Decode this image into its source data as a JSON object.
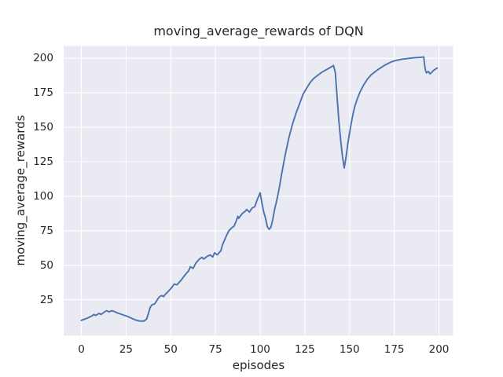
{
  "figure": {
    "background_color": "#ffffff"
  },
  "chart_data": {
    "type": "line",
    "title": "moving_average_rewards of DQN",
    "xlabel": "episodes",
    "ylabel": "moving_average_rewards",
    "x_ticks": [
      0,
      25,
      50,
      75,
      100,
      125,
      150,
      175,
      200
    ],
    "y_ticks": [
      25,
      50,
      75,
      100,
      125,
      150,
      175,
      200
    ],
    "xlim": [
      -9.9,
      207.9
    ],
    "ylim": [
      -1,
      209
    ],
    "grid": true,
    "legend_position": "none",
    "plot_bg_color": "#EAEAF2",
    "grid_color": "#FFFFFF",
    "text_color": "#262626",
    "series": [
      {
        "name": "DQN moving average reward",
        "color": "#4C72B0",
        "points": [
          [
            0,
            10
          ],
          [
            2,
            11
          ],
          [
            4,
            12
          ],
          [
            6,
            13.3
          ],
          [
            7,
            14.3
          ],
          [
            8,
            13.6
          ],
          [
            10,
            15.1
          ],
          [
            11,
            14.3
          ],
          [
            12.5,
            15.7
          ],
          [
            14,
            17
          ],
          [
            15.5,
            16.2
          ],
          [
            17,
            17
          ],
          [
            18,
            16.6
          ],
          [
            20,
            15.5
          ],
          [
            23,
            14.2
          ],
          [
            26,
            12.8
          ],
          [
            29,
            11
          ],
          [
            31,
            10
          ],
          [
            33,
            9.5
          ],
          [
            35,
            9.5
          ],
          [
            36.5,
            11
          ],
          [
            37.5,
            15
          ],
          [
            38.5,
            19.5
          ],
          [
            39.5,
            21.3
          ],
          [
            41,
            22
          ],
          [
            42,
            24
          ],
          [
            43,
            26
          ],
          [
            44,
            27.5
          ],
          [
            45,
            28
          ],
          [
            46,
            27.3
          ],
          [
            47,
            29
          ],
          [
            48,
            30.2
          ],
          [
            50,
            33
          ],
          [
            52,
            36.4
          ],
          [
            53.5,
            35.8
          ],
          [
            55,
            38
          ],
          [
            56,
            39.5
          ],
          [
            58,
            43
          ],
          [
            60,
            46
          ],
          [
            61,
            48.9
          ],
          [
            62.5,
            47.7
          ],
          [
            64,
            51.5
          ],
          [
            66,
            54.5
          ],
          [
            67.5,
            55.7
          ],
          [
            68.5,
            54.5
          ],
          [
            70,
            56.2
          ],
          [
            72,
            57.5
          ],
          [
            73.5,
            56
          ],
          [
            74.5,
            59
          ],
          [
            76,
            57.5
          ],
          [
            78,
            60.5
          ],
          [
            79,
            65
          ],
          [
            80,
            68
          ],
          [
            81,
            71
          ],
          [
            82.5,
            75
          ],
          [
            84,
            77
          ],
          [
            85.5,
            78.5
          ],
          [
            86.5,
            81.8
          ],
          [
            87.5,
            85.5
          ],
          [
            88,
            84
          ],
          [
            90,
            87.5
          ],
          [
            91.5,
            89
          ],
          [
            92.5,
            90.5
          ],
          [
            94,
            88.5
          ],
          [
            95.5,
            91.5
          ],
          [
            97,
            92.5
          ],
          [
            98.5,
            98
          ],
          [
            100,
            102.5
          ],
          [
            101,
            95
          ],
          [
            102,
            88.5
          ],
          [
            103,
            84
          ],
          [
            104,
            78
          ],
          [
            105,
            76
          ],
          [
            106,
            77.5
          ],
          [
            107,
            83
          ],
          [
            108,
            90
          ],
          [
            109,
            95.5
          ],
          [
            110,
            101.5
          ],
          [
            111,
            108.5
          ],
          [
            112,
            116
          ],
          [
            114,
            130
          ],
          [
            116,
            142
          ],
          [
            118,
            152
          ],
          [
            120,
            160
          ],
          [
            122,
            167
          ],
          [
            124,
            174
          ],
          [
            126,
            178.5
          ],
          [
            128,
            182.5
          ],
          [
            130,
            185.5
          ],
          [
            132,
            187.5
          ],
          [
            134,
            189.5
          ],
          [
            136,
            191
          ],
          [
            138,
            192.5
          ],
          [
            140,
            194
          ],
          [
            141,
            194.8
          ],
          [
            142,
            190
          ],
          [
            143,
            172
          ],
          [
            144,
            155
          ],
          [
            145,
            141
          ],
          [
            146,
            129
          ],
          [
            147,
            120.5
          ],
          [
            148,
            128
          ],
          [
            149,
            138
          ],
          [
            150,
            146
          ],
          [
            151,
            153.5
          ],
          [
            152,
            160
          ],
          [
            153,
            165.5
          ],
          [
            154,
            169.5
          ],
          [
            155,
            173
          ],
          [
            156,
            176
          ],
          [
            157,
            178.5
          ],
          [
            158,
            181
          ],
          [
            159,
            183
          ],
          [
            160,
            185
          ],
          [
            162,
            188
          ],
          [
            164,
            190
          ],
          [
            166,
            192
          ],
          [
            168,
            193.7
          ],
          [
            170,
            195.3
          ],
          [
            172,
            196.6
          ],
          [
            174,
            197.7
          ],
          [
            176,
            198.5
          ],
          [
            178,
            199.1
          ],
          [
            180,
            199.5
          ],
          [
            182,
            199.8
          ],
          [
            184,
            200.1
          ],
          [
            186,
            200.4
          ],
          [
            188,
            200.6
          ],
          [
            190,
            200.8
          ],
          [
            191.5,
            201
          ],
          [
            192,
            195
          ],
          [
            192.5,
            191
          ],
          [
            193,
            189.5
          ],
          [
            194,
            190.5
          ],
          [
            195,
            188.8
          ],
          [
            196,
            190
          ],
          [
            197,
            191.3
          ],
          [
            198,
            192.2
          ],
          [
            199,
            193
          ]
        ]
      }
    ]
  }
}
